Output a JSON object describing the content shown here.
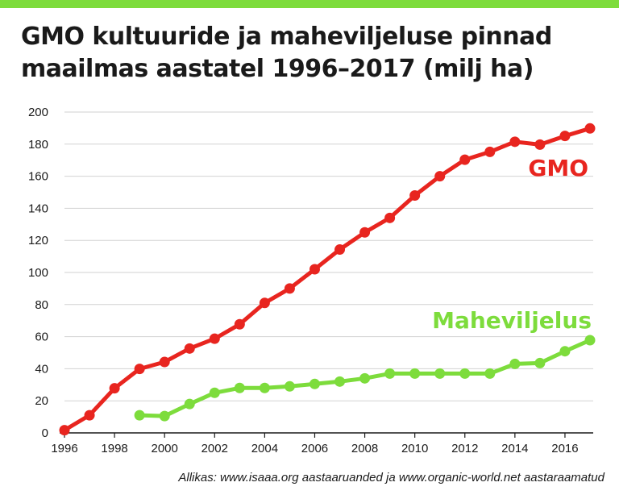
{
  "title": "GMO kultuuride ja maheviljeluse pinnad maailmas aastatel 1996–2017 (milj ha)",
  "source": "Allikas: www.isaaa.org aastaaruanded ja www.organic-world.net aastaraamatud",
  "colors": {
    "accent_bar": "#7ddc3c",
    "gmo": "#e8251f",
    "organic": "#7ddc3c",
    "grid": "#d2d2d2",
    "axis": "#1a1a1a"
  },
  "chart_data": {
    "type": "line",
    "title": "GMO kultuuride ja maheviljeluse pinnad maailmas aastatel 1996–2017 (milj ha)",
    "xlabel": "",
    "ylabel": "",
    "xlim": [
      1996,
      2017
    ],
    "ylim": [
      0,
      200
    ],
    "x_ticks": [
      "1996",
      "1998",
      "2000",
      "2002",
      "2004",
      "2006",
      "2008",
      "2010",
      "2012",
      "2014",
      "2016"
    ],
    "y_ticks": [
      "0",
      "20",
      "40",
      "60",
      "80",
      "100",
      "120",
      "140",
      "160",
      "180",
      "200"
    ],
    "grid": true,
    "series": [
      {
        "name": "GMO",
        "color": "#e8251f",
        "x": [
          1996,
          1997,
          1998,
          1999,
          2000,
          2001,
          2002,
          2003,
          2004,
          2005,
          2006,
          2007,
          2008,
          2009,
          2010,
          2011,
          2012,
          2013,
          2014,
          2015,
          2016,
          2017
        ],
        "values": [
          1.7,
          11,
          27.8,
          39.9,
          44.2,
          52.6,
          58.7,
          67.7,
          81,
          90,
          102,
          114.3,
          125,
          134,
          148,
          160,
          170.3,
          175.2,
          181.5,
          179.7,
          185.1,
          189.8
        ]
      },
      {
        "name": "Maheviljelus",
        "color": "#7ddc3c",
        "x": [
          1999,
          2000,
          2001,
          2002,
          2003,
          2004,
          2005,
          2006,
          2007,
          2008,
          2009,
          2010,
          2011,
          2012,
          2013,
          2014,
          2015,
          2016,
          2017
        ],
        "values": [
          11,
          10.5,
          18,
          25,
          28,
          28,
          29,
          30.5,
          32,
          34,
          37,
          37,
          37,
          37,
          37,
          43,
          43.5,
          50.9,
          57.8
        ]
      }
    ]
  }
}
